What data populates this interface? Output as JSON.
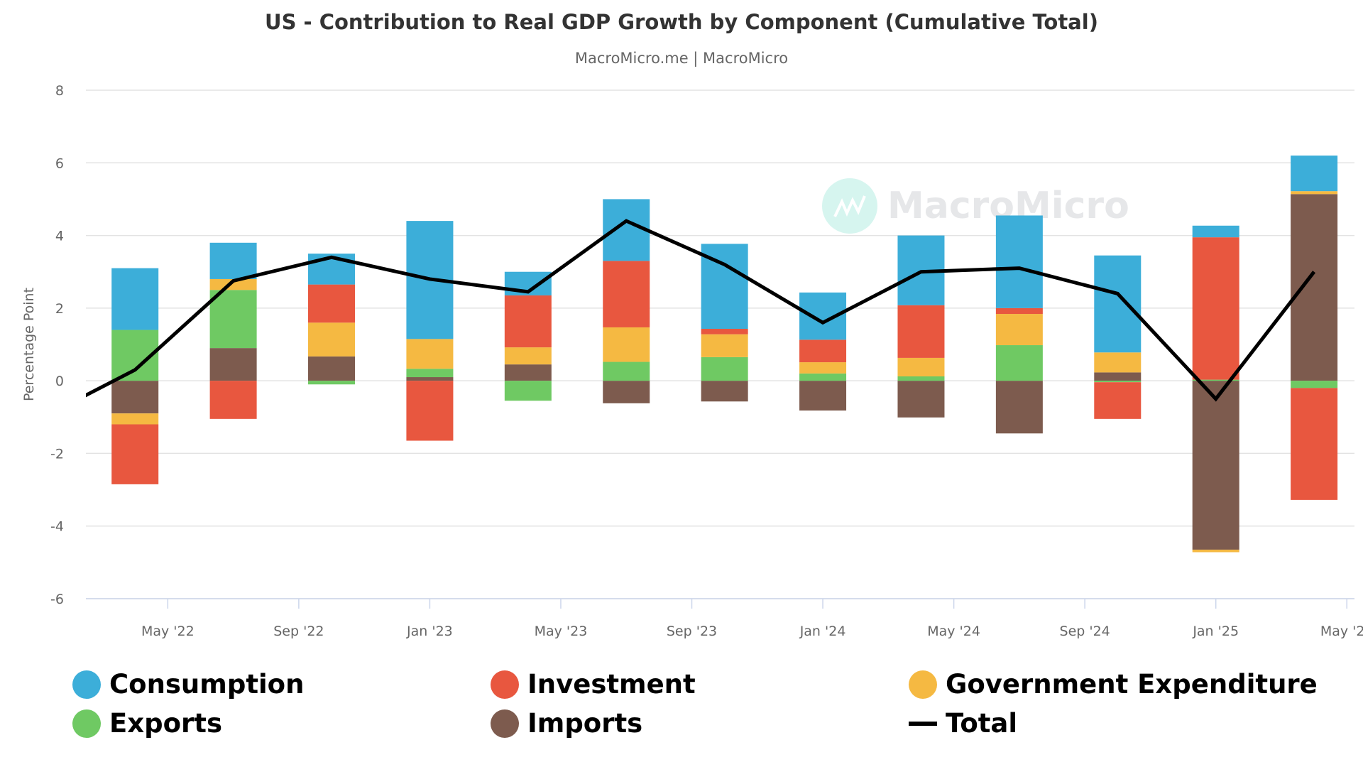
{
  "chart_data": {
    "type": "bar",
    "stacked": true,
    "title": "US - Contribution to Real GDP Growth by Component (Cumulative Total)",
    "subtitle": "MacroMicro.me | MacroMicro",
    "ylabel": "Percentage Point",
    "ylim": [
      -6,
      8
    ],
    "yticks": [
      8,
      6,
      4,
      2,
      0,
      -2,
      -4,
      -6
    ],
    "xlim": [
      "2022-02-16",
      "2025-05-08"
    ],
    "xticks": [
      {
        "date": "2022-05",
        "label": "May '22"
      },
      {
        "date": "2022-09",
        "label": "Sep '22"
      },
      {
        "date": "2023-01",
        "label": "Jan '23"
      },
      {
        "date": "2023-05",
        "label": "May '23"
      },
      {
        "date": "2023-09",
        "label": "Sep '23"
      },
      {
        "date": "2024-01",
        "label": "Jan '24"
      },
      {
        "date": "2024-05",
        "label": "May '24"
      },
      {
        "date": "2024-09",
        "label": "Sep '24"
      },
      {
        "date": "2025-01",
        "label": "Jan '25"
      },
      {
        "date": "2025-05",
        "label": "May '25"
      }
    ],
    "grid": true,
    "legend_position": "bottom",
    "x": [
      "2022-04",
      "2022-07",
      "2022-10",
      "2023-01",
      "2023-04",
      "2023-07",
      "2023-10",
      "2024-01",
      "2024-04",
      "2024-07",
      "2024-10",
      "2025-01",
      "2025-04"
    ],
    "series": [
      {
        "name": "Consumption",
        "color": "#3caed9",
        "values": [
          1.7,
          1.0,
          0.85,
          3.25,
          0.65,
          1.7,
          2.34,
          1.3,
          1.92,
          2.55,
          2.67,
          0.32,
          0.98
        ]
      },
      {
        "name": "Investment",
        "color": "#e8573f",
        "values": [
          -1.65,
          -1.05,
          1.05,
          -1.65,
          1.43,
          1.83,
          0.15,
          0.62,
          1.45,
          0.16,
          -1.01,
          3.92,
          -3.08
        ]
      },
      {
        "name": "Government Expenditure",
        "color": "#f5b942",
        "values": [
          -0.3,
          0.3,
          0.93,
          0.82,
          0.47,
          0.95,
          0.63,
          0.31,
          0.51,
          0.86,
          0.55,
          -0.07,
          0.08
        ]
      },
      {
        "name": "Exports",
        "color": "#6fc963",
        "values": [
          1.4,
          1.6,
          -0.1,
          0.23,
          -0.55,
          0.52,
          0.65,
          0.2,
          0.12,
          0.98,
          -0.04,
          0.03,
          -0.2
        ]
      },
      {
        "name": "Imports",
        "color": "#7d5b4e",
        "values": [
          -0.9,
          0.9,
          0.67,
          0.1,
          0.45,
          -0.62,
          -0.57,
          -0.82,
          -1.01,
          -1.45,
          0.23,
          -4.65,
          5.14
        ]
      }
    ],
    "total": {
      "name": "Total",
      "color": "#000000",
      "x": [
        "2022-01",
        "2022-04",
        "2022-07",
        "2022-10",
        "2023-01",
        "2023-04",
        "2023-07",
        "2023-10",
        "2024-01",
        "2024-04",
        "2024-07",
        "2024-10",
        "2025-01",
        "2025-04"
      ],
      "values": [
        -1.1,
        0.3,
        2.75,
        3.4,
        2.8,
        2.45,
        4.4,
        3.2,
        1.6,
        3.0,
        3.1,
        2.4,
        -0.5,
        3.0
      ]
    }
  },
  "watermark": {
    "text": "MacroMicro",
    "icon": "macromicro-logo-icon"
  }
}
